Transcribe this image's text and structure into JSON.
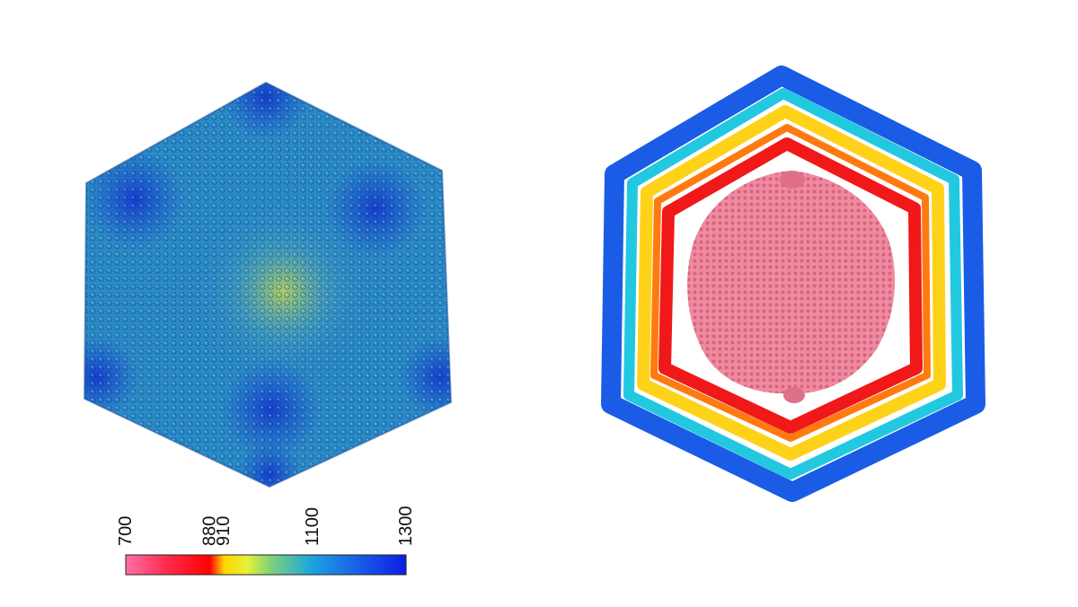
{
  "colorbar": {
    "ticks": [
      {
        "value": 700,
        "label": "700"
      },
      {
        "value": 880,
        "label": "880"
      },
      {
        "value": 910,
        "label": "910"
      },
      {
        "value": 1100,
        "label": "1100"
      },
      {
        "value": 1300,
        "label": "1300"
      }
    ],
    "range": [
      700,
      1300
    ],
    "stops": [
      {
        "value": 700,
        "color": "#ff6fa8"
      },
      {
        "value": 790,
        "color": "#ff2a4a"
      },
      {
        "value": 880,
        "color": "#ff0000"
      },
      {
        "value": 910,
        "color": "#ffd400"
      },
      {
        "value": 960,
        "color": "#e6f03a"
      },
      {
        "value": 1010,
        "color": "#7fd27a"
      },
      {
        "value": 1100,
        "color": "#1aa3e0"
      },
      {
        "value": 1200,
        "color": "#1a5ce6"
      },
      {
        "value": 1300,
        "color": "#0a1ee6"
      }
    ]
  },
  "colors": {
    "shell_base": "#2a8cc8",
    "shell_vertex": "#1a4fd6",
    "shell_center": "#b8d24a",
    "section_outer": "#1a5ce6",
    "section_mid": "#22c8e0",
    "section_yellow": "#ffd21a",
    "section_orange": "#ff7a10",
    "section_red": "#f01818",
    "core": "#f08aa0"
  }
}
